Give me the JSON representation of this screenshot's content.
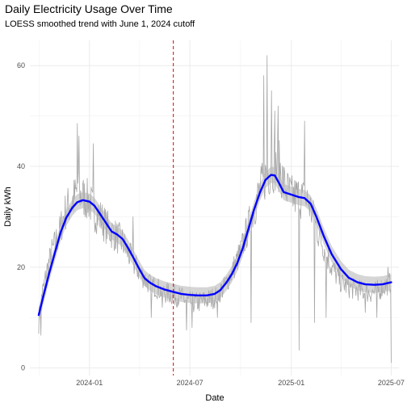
{
  "chart_data": {
    "type": "line",
    "title": "Daily Electricity Usage Over Time",
    "subtitle": "LOESS smoothed trend with June 1, 2024 cutoff",
    "xlabel": "Date",
    "ylabel": "Daily kWh",
    "x_range": [
      "2023-09-15",
      "2025-07-15"
    ],
    "ylim": [
      -1.5,
      65
    ],
    "x_ticks": [
      {
        "date": "2024-01-01",
        "label": "2024-01"
      },
      {
        "date": "2024-07-01",
        "label": "2024-07"
      },
      {
        "date": "2025-01-01",
        "label": "2025-01"
      },
      {
        "date": "2025-07-01",
        "label": "2025-07"
      }
    ],
    "y_ticks": [
      0,
      20,
      40,
      60
    ],
    "grid": true,
    "cutoff": {
      "date": "2024-06-01",
      "color": "#e41a1c",
      "style": "dashed"
    },
    "series": [
      {
        "role": "raw daily",
        "color": "#a6a6a6",
        "anchors": [
          [
            "2023-10-01",
            9
          ],
          [
            "2023-10-05",
            14
          ],
          [
            "2023-10-10",
            16
          ],
          [
            "2023-10-15",
            19
          ],
          [
            "2023-10-20",
            21
          ],
          [
            "2023-10-25",
            23
          ],
          [
            "2023-11-01",
            25
          ],
          [
            "2023-11-08",
            27
          ],
          [
            "2023-11-15",
            30
          ],
          [
            "2023-11-22",
            32
          ],
          [
            "2023-12-01",
            33
          ],
          [
            "2023-12-10",
            35
          ],
          [
            "2023-12-20",
            34
          ],
          [
            "2024-01-01",
            33
          ],
          [
            "2024-01-10",
            31
          ],
          [
            "2024-01-20",
            30
          ],
          [
            "2024-02-01",
            28
          ],
          [
            "2024-02-10",
            27
          ],
          [
            "2024-02-20",
            26
          ],
          [
            "2024-03-01",
            25
          ],
          [
            "2024-03-10",
            23
          ],
          [
            "2024-03-20",
            21
          ],
          [
            "2024-04-01",
            19
          ],
          [
            "2024-04-15",
            17
          ],
          [
            "2024-05-01",
            16
          ],
          [
            "2024-05-15",
            15
          ],
          [
            "2024-06-01",
            14.5
          ],
          [
            "2024-06-15",
            14
          ],
          [
            "2024-07-01",
            13
          ],
          [
            "2024-07-15",
            13
          ],
          [
            "2024-08-01",
            13.5
          ],
          [
            "2024-08-15",
            14
          ],
          [
            "2024-09-01",
            16
          ],
          [
            "2024-09-15",
            19
          ],
          [
            "2024-10-01",
            23
          ],
          [
            "2024-10-15",
            28
          ],
          [
            "2024-11-01",
            34
          ],
          [
            "2024-11-15",
            38
          ],
          [
            "2024-12-01",
            40
          ],
          [
            "2024-12-10",
            40
          ],
          [
            "2024-12-20",
            36
          ],
          [
            "2025-01-01",
            34
          ],
          [
            "2025-01-15",
            34
          ],
          [
            "2025-02-01",
            33
          ],
          [
            "2025-02-15",
            28
          ],
          [
            "2025-03-01",
            24
          ],
          [
            "2025-03-15",
            20
          ],
          [
            "2025-04-01",
            17
          ],
          [
            "2025-04-15",
            16
          ],
          [
            "2025-05-01",
            15.5
          ],
          [
            "2025-05-15",
            15
          ],
          [
            "2025-06-01",
            15
          ],
          [
            "2025-06-15",
            16
          ],
          [
            "2025-07-01",
            17
          ]
        ],
        "spikes": [
          [
            "2023-10-05",
            6.5
          ],
          [
            "2023-12-10",
            48.5
          ],
          [
            "2023-12-13",
            46
          ],
          [
            "2024-01-08",
            44.5
          ],
          [
            "2024-03-20",
            30
          ],
          [
            "2024-04-22",
            10
          ],
          [
            "2024-05-12",
            12
          ],
          [
            "2024-06-25",
            7.5
          ],
          [
            "2024-07-05",
            8
          ],
          [
            "2024-08-20",
            10
          ],
          [
            "2024-10-20",
            9
          ],
          [
            "2024-11-12",
            58
          ],
          [
            "2024-11-18",
            62
          ],
          [
            "2024-11-26",
            55
          ],
          [
            "2024-12-02",
            51
          ],
          [
            "2024-12-08",
            52
          ],
          [
            "2025-01-15",
            3.5
          ],
          [
            "2025-01-25",
            49
          ],
          [
            "2025-02-12",
            9
          ],
          [
            "2025-03-05",
            10
          ],
          [
            "2025-05-15",
            11
          ],
          [
            "2025-06-05",
            10
          ],
          [
            "2025-06-25",
            20
          ],
          [
            "2025-07-01",
            1
          ]
        ]
      },
      {
        "role": "LOESS smoothed trend",
        "color": "#0000ff",
        "band_color": "#b3b3b3",
        "points": [
          [
            "2023-10-01",
            10.5
          ],
          [
            "2023-10-10",
            14.5
          ],
          [
            "2023-10-20",
            18.8
          ],
          [
            "2023-11-01",
            23.5
          ],
          [
            "2023-11-10",
            27
          ],
          [
            "2023-11-20",
            29.8
          ],
          [
            "2023-12-01",
            31.8
          ],
          [
            "2023-12-10",
            32.9
          ],
          [
            "2023-12-20",
            33.3
          ],
          [
            "2024-01-01",
            33
          ],
          [
            "2024-01-10",
            32.2
          ],
          [
            "2024-01-20",
            30.6
          ],
          [
            "2024-02-01",
            28.6
          ],
          [
            "2024-02-10",
            27.1
          ],
          [
            "2024-02-20",
            26.5
          ],
          [
            "2024-03-01",
            25.6
          ],
          [
            "2024-03-10",
            24
          ],
          [
            "2024-03-20",
            22
          ],
          [
            "2024-04-01",
            19.5
          ],
          [
            "2024-04-10",
            17.8
          ],
          [
            "2024-04-20",
            16.9
          ],
          [
            "2024-05-01",
            16.2
          ],
          [
            "2024-05-15",
            15.6
          ],
          [
            "2024-06-01",
            15.1
          ],
          [
            "2024-06-15",
            14.7
          ],
          [
            "2024-07-01",
            14.5
          ],
          [
            "2024-07-15",
            14.4
          ],
          [
            "2024-08-01",
            14.4
          ],
          [
            "2024-08-15",
            14.7
          ],
          [
            "2024-08-25",
            15.4
          ],
          [
            "2024-09-05",
            16.9
          ],
          [
            "2024-09-15",
            18.6
          ],
          [
            "2024-09-25",
            20.8
          ],
          [
            "2024-10-05",
            23.8
          ],
          [
            "2024-10-15",
            27.5
          ],
          [
            "2024-10-25",
            31.3
          ],
          [
            "2024-11-05",
            34.8
          ],
          [
            "2024-11-15",
            37.3
          ],
          [
            "2024-11-25",
            38.3
          ],
          [
            "2024-12-02",
            38.2
          ],
          [
            "2024-12-10",
            36.6
          ],
          [
            "2024-12-18",
            34.9
          ],
          [
            "2025-01-01",
            34.4
          ],
          [
            "2025-01-15",
            33.9
          ],
          [
            "2025-01-25",
            33.7
          ],
          [
            "2025-02-05",
            32.6
          ],
          [
            "2025-02-15",
            30.1
          ],
          [
            "2025-03-01",
            26.1
          ],
          [
            "2025-03-15",
            22.6
          ],
          [
            "2025-04-01",
            19.6
          ],
          [
            "2025-04-15",
            17.9
          ],
          [
            "2025-05-01",
            17
          ],
          [
            "2025-05-15",
            16.6
          ],
          [
            "2025-06-01",
            16.5
          ],
          [
            "2025-06-15",
            16.6
          ],
          [
            "2025-07-01",
            17
          ]
        ]
      }
    ]
  }
}
